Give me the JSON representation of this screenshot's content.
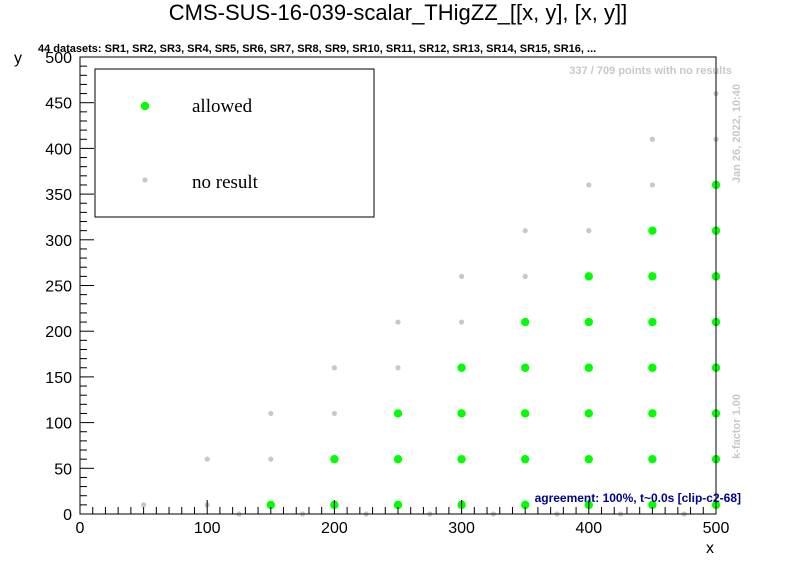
{
  "chart_data": {
    "type": "scatter",
    "title": "CMS-SUS-16-039-scalar_THigZZ_[[x, y], [x, y]]",
    "subtitle": "44 datasets: SR1, SR2, SR3, SR4, SR5, SR6, SR7, SR8, SR9, SR10, SR11, SR12, SR13, SR14, SR15, SR16,  ...",
    "xlabel": "x",
    "ylabel": "y",
    "xlim": [
      0,
      500
    ],
    "ylim": [
      0,
      500
    ],
    "xticks": [
      0,
      100,
      200,
      300,
      400,
      500
    ],
    "yticks": [
      0,
      50,
      100,
      150,
      200,
      250,
      300,
      350,
      400,
      450,
      500
    ],
    "legend_position": "top-left",
    "grid": false,
    "series": [
      {
        "name": "allowed",
        "color": "#00ff00",
        "points": [
          [
            150,
            10
          ],
          [
            200,
            10
          ],
          [
            250,
            10
          ],
          [
            300,
            10
          ],
          [
            350,
            10
          ],
          [
            400,
            10
          ],
          [
            450,
            10
          ],
          [
            500,
            10
          ],
          [
            200,
            60
          ],
          [
            250,
            60
          ],
          [
            300,
            60
          ],
          [
            350,
            60
          ],
          [
            400,
            60
          ],
          [
            450,
            60
          ],
          [
            500,
            60
          ],
          [
            250,
            110
          ],
          [
            300,
            110
          ],
          [
            350,
            110
          ],
          [
            400,
            110
          ],
          [
            450,
            110
          ],
          [
            500,
            110
          ],
          [
            300,
            160
          ],
          [
            350,
            160
          ],
          [
            400,
            160
          ],
          [
            450,
            160
          ],
          [
            500,
            160
          ],
          [
            350,
            210
          ],
          [
            400,
            210
          ],
          [
            450,
            210
          ],
          [
            500,
            210
          ],
          [
            400,
            260
          ],
          [
            450,
            260
          ],
          [
            500,
            260
          ],
          [
            450,
            310
          ],
          [
            500,
            310
          ],
          [
            500,
            360
          ]
        ]
      },
      {
        "name": "no result",
        "color": "#c8c8c8",
        "points": [
          [
            50,
            10
          ],
          [
            100,
            10
          ],
          [
            125,
            0
          ],
          [
            175,
            0
          ],
          [
            225,
            0
          ],
          [
            275,
            0
          ],
          [
            325,
            0
          ],
          [
            375,
            0
          ],
          [
            425,
            0
          ],
          [
            475,
            0
          ],
          [
            100,
            60
          ],
          [
            150,
            60
          ],
          [
            150,
            110
          ],
          [
            200,
            110
          ],
          [
            200,
            160
          ],
          [
            250,
            160
          ],
          [
            250,
            210
          ],
          [
            300,
            210
          ],
          [
            300,
            260
          ],
          [
            350,
            260
          ],
          [
            350,
            310
          ],
          [
            400,
            310
          ],
          [
            400,
            360
          ],
          [
            450,
            360
          ],
          [
            450,
            410
          ],
          [
            500,
            410
          ],
          [
            500,
            460
          ]
        ]
      }
    ],
    "annotations": {
      "no_results": "337 / 709 points with no results",
      "timestamp": "Jan 26, 2022, 10:40",
      "kfactor": "k-factor 1.00",
      "agreement": "agreement: 100%, t~0.0s [clip-c2-68]"
    }
  }
}
